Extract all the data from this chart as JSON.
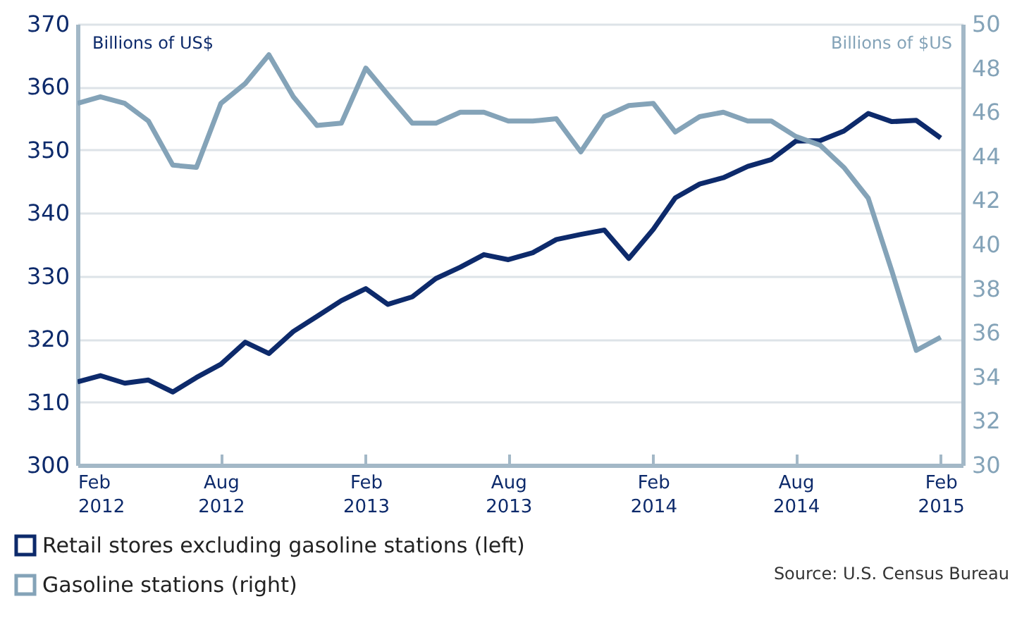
{
  "chart_data": {
    "type": "line",
    "x": [
      "2012-02",
      "2012-03",
      "2012-04",
      "2012-05",
      "2012-06",
      "2012-07",
      "2012-08",
      "2012-09",
      "2012-10",
      "2012-11",
      "2012-12",
      "2013-01",
      "2013-02",
      "2013-03",
      "2013-04",
      "2013-05",
      "2013-06",
      "2013-07",
      "2013-08",
      "2013-09",
      "2013-10",
      "2013-11",
      "2013-12",
      "2014-01",
      "2014-02",
      "2014-03",
      "2014-04",
      "2014-05",
      "2014-06",
      "2014-07",
      "2014-08",
      "2014-09",
      "2014-10",
      "2014-11",
      "2014-12",
      "2015-01",
      "2015-02"
    ],
    "series": [
      {
        "name": "Retail stores excluding gasoline stations (left)",
        "color": "#0d2a6b",
        "values": [
          313.2,
          314.2,
          313.0,
          313.5,
          311.6,
          313.9,
          316.0,
          319.5,
          317.7,
          321.2,
          323.6,
          326.1,
          328.0,
          325.5,
          326.7,
          329.6,
          331.4,
          333.4,
          332.6,
          333.7,
          335.8,
          336.6,
          337.3,
          332.8,
          337.4,
          342.4,
          344.6,
          345.6,
          347.4,
          348.5,
          351.4,
          351.5,
          353.0,
          355.8,
          354.5,
          354.7,
          351.9
        ]
      },
      {
        "name": "Gasoline stations (right)",
        "color": "#84a3b8",
        "axis": "y2",
        "values": [
          46.4,
          46.7,
          46.4,
          45.6,
          43.6,
          43.5,
          46.4,
          47.3,
          48.6,
          46.7,
          45.4,
          45.5,
          48.0,
          46.8,
          45.5,
          45.5,
          46.0,
          46.0,
          45.6,
          45.6,
          45.7,
          44.2,
          45.8,
          46.3,
          46.4,
          45.1,
          45.8,
          46.0,
          45.6,
          45.6,
          44.9,
          44.5,
          43.5,
          42.1,
          38.8,
          35.2,
          35.8
        ]
      }
    ],
    "ylabel": "Billions of US$",
    "y2label": "Billions of $US",
    "ylim": [
      300,
      370
    ],
    "yticks": [
      300,
      310,
      320,
      330,
      340,
      350,
      360,
      370
    ],
    "y2lim": [
      30,
      50
    ],
    "y2ticks": [
      30,
      32,
      34,
      36,
      38,
      40,
      42,
      44,
      46,
      48,
      50
    ],
    "xlim": [
      "2012-02",
      "2015-03"
    ],
    "xticks": [
      {
        "value": "2012-02",
        "label": "Feb 2012"
      },
      {
        "value": "2012-08",
        "label": "Aug 2012"
      },
      {
        "value": "2013-02",
        "label": "Feb 2013"
      },
      {
        "value": "2013-08",
        "label": "Aug 2013"
      },
      {
        "value": "2014-02",
        "label": "Feb 2014"
      },
      {
        "value": "2014-08",
        "label": "Aug 2014"
      },
      {
        "value": "2015-02",
        "label": "Feb 2015"
      }
    ],
    "grid": "y",
    "legend": "bottom left",
    "line_style": "solid",
    "annotations": [
      "Source: U.S. Census Bureau"
    ]
  }
}
